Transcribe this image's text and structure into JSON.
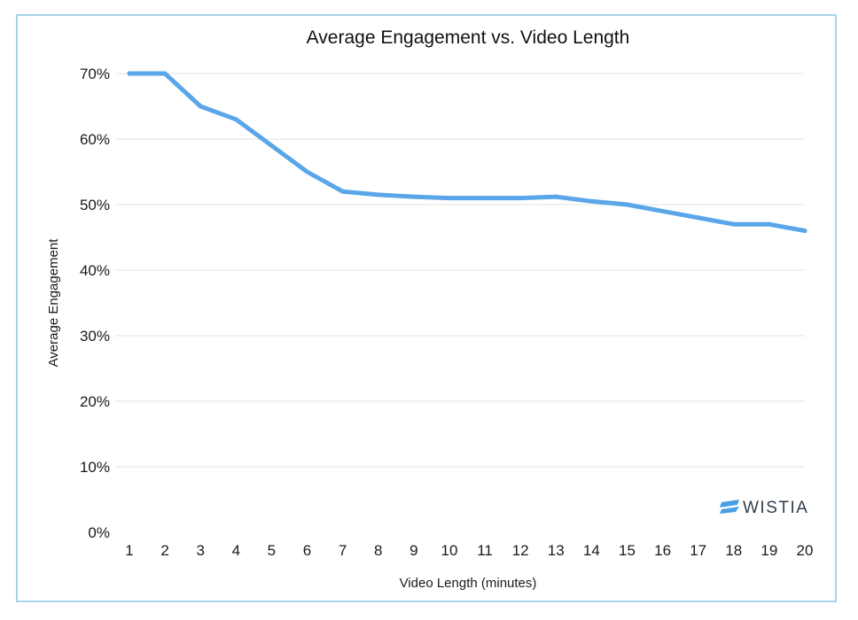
{
  "chart_data": {
    "type": "line",
    "title": "Average Engagement vs. Video Length",
    "xlabel": "Video Length (minutes)",
    "ylabel": "Average Engagement",
    "x": [
      1,
      2,
      3,
      4,
      5,
      6,
      7,
      8,
      9,
      10,
      11,
      12,
      13,
      14,
      15,
      16,
      17,
      18,
      19,
      20
    ],
    "series": [
      {
        "values": [
          70,
          70,
          65,
          63,
          59,
          55,
          52,
          51.5,
          51.2,
          51,
          51,
          51,
          51.2,
          50.5,
          50,
          49,
          48,
          47,
          47,
          46
        ]
      }
    ],
    "ylim": [
      0,
      70
    ],
    "yticks": [
      "0%",
      "10%",
      "20%",
      "30%",
      "40%",
      "50%",
      "60%",
      "70%"
    ],
    "yticks_values": [
      0,
      10,
      20,
      30,
      40,
      50,
      60,
      70
    ],
    "grid": true,
    "line_color": "#5aa6e8"
  },
  "logo": {
    "text": "WISTIA",
    "icon": "wistia-logo-icon",
    "color": "#4a9fe4"
  }
}
